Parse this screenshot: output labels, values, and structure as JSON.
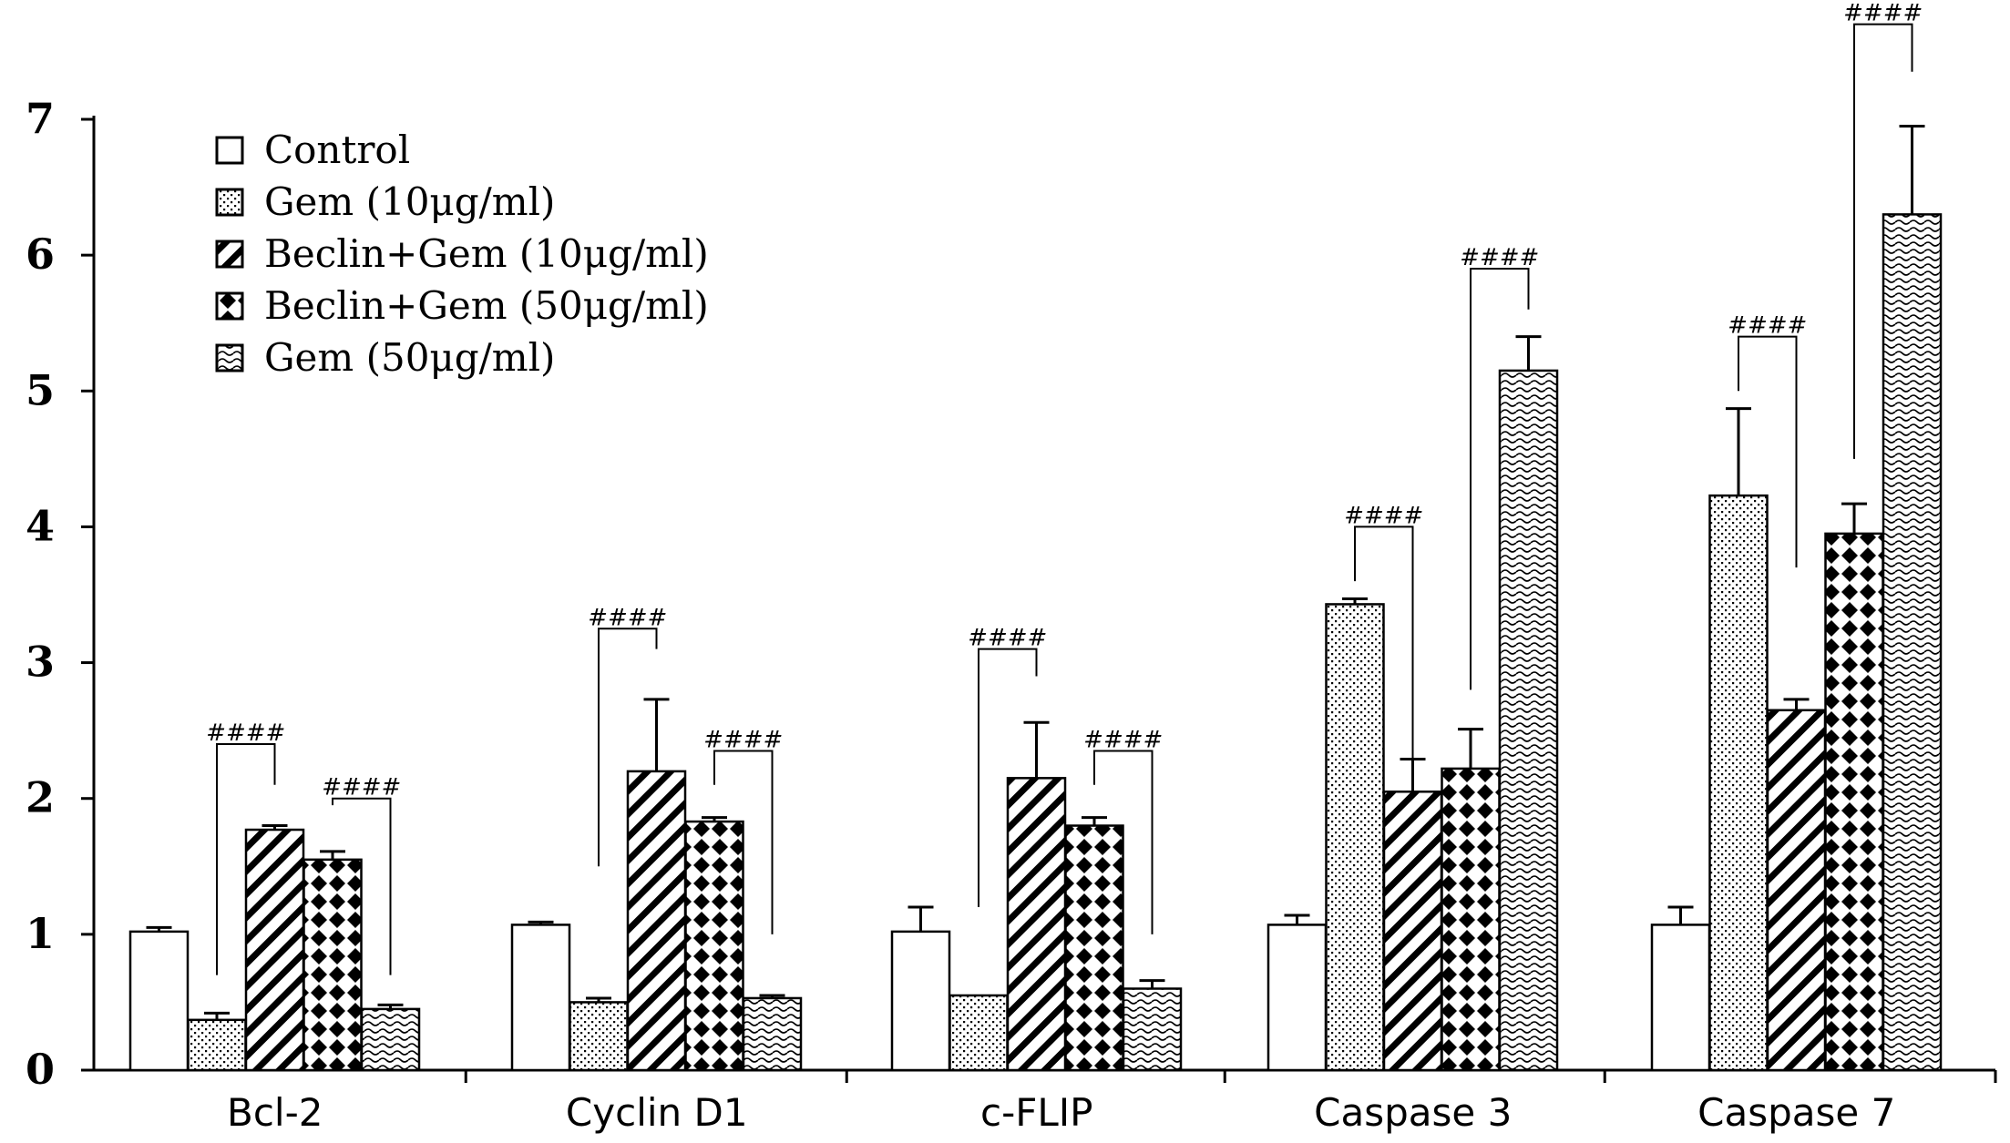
{
  "chart_data": {
    "type": "bar",
    "ylim": [
      0,
      7
    ],
    "yticks": [
      "0",
      "1",
      "2",
      "3",
      "4",
      "5",
      "6",
      "7"
    ],
    "categories": [
      "Bcl-2",
      "Cyclin D1",
      "c-FLIP",
      "Caspase 3",
      "Caspase 7"
    ],
    "legend_position": "top-left",
    "series": [
      {
        "name": "Control",
        "pattern": "none",
        "values": [
          1.02,
          1.07,
          1.02,
          1.07,
          1.07
        ],
        "errors": [
          0.03,
          0.02,
          0.18,
          0.07,
          0.13
        ]
      },
      {
        "name": "Gem (10μg/ml)",
        "pattern": "dots",
        "values": [
          0.37,
          0.5,
          0.55,
          3.43,
          4.23
        ],
        "errors": [
          0.05,
          0.03,
          0.0,
          0.04,
          0.64
        ]
      },
      {
        "name": "Beclin+Gem (10μg/ml)",
        "pattern": "diagonal",
        "values": [
          1.77,
          2.2,
          2.15,
          2.05,
          2.65
        ],
        "errors": [
          0.03,
          0.53,
          0.41,
          0.24,
          0.08
        ]
      },
      {
        "name": "Beclin+Gem (50μg/ml)",
        "pattern": "diamonds",
        "values": [
          1.55,
          1.83,
          1.8,
          2.22,
          3.95
        ],
        "errors": [
          0.06,
          0.03,
          0.06,
          0.29,
          0.22
        ]
      },
      {
        "name": "Gem (50μg/ml)",
        "pattern": "waves",
        "values": [
          0.45,
          0.53,
          0.6,
          5.15,
          6.3
        ],
        "errors": [
          0.03,
          0.02,
          0.06,
          0.25,
          0.65
        ]
      }
    ],
    "annotations": [
      {
        "text": "####",
        "category": 0,
        "from": 1,
        "to": 2,
        "left_y": 0.7,
        "right_y": 2.1,
        "top_y": 2.4
      },
      {
        "text": "####",
        "category": 0,
        "from": 3,
        "to": 4,
        "left_y": 1.95,
        "right_y": 0.7,
        "top_y": 2.0
      },
      {
        "text": "####",
        "category": 1,
        "from": 1,
        "to": 2,
        "left_y": 1.5,
        "right_y": 3.1,
        "top_y": 3.25
      },
      {
        "text": "####",
        "category": 1,
        "from": 3,
        "to": 4,
        "left_y": 2.1,
        "right_y": 1.0,
        "top_y": 2.35
      },
      {
        "text": "####",
        "category": 2,
        "from": 1,
        "to": 2,
        "left_y": 1.2,
        "right_y": 2.9,
        "top_y": 3.1
      },
      {
        "text": "####",
        "category": 2,
        "from": 3,
        "to": 4,
        "left_y": 2.1,
        "right_y": 1.0,
        "top_y": 2.35
      },
      {
        "text": "####",
        "category": 3,
        "from": 1,
        "to": 2,
        "left_y": 3.6,
        "right_y": 2.3,
        "top_y": 4.0
      },
      {
        "text": "####",
        "category": 3,
        "from": 3,
        "to": 4,
        "left_y": 2.8,
        "right_y": 5.6,
        "top_y": 5.9
      },
      {
        "text": "####",
        "category": 4,
        "from": 1,
        "to": 2,
        "left_y": 5.0,
        "right_y": 3.7,
        "top_y": 5.4
      },
      {
        "text": "####",
        "category": 4,
        "from": 3,
        "to": 4,
        "left_y": 4.5,
        "right_y": 7.35,
        "top_y": 7.7
      }
    ]
  }
}
